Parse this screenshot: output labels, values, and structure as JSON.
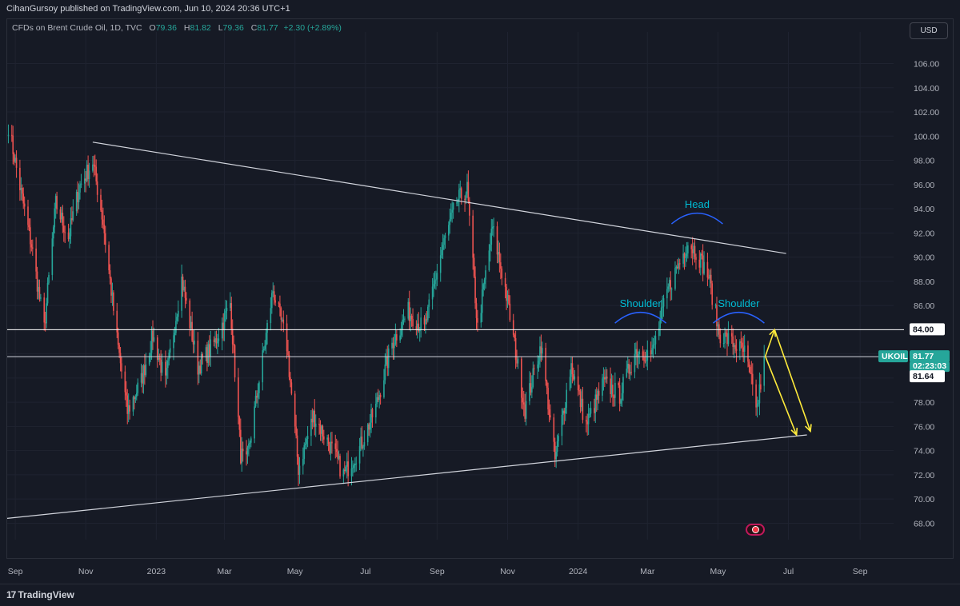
{
  "header": {
    "published": "CihanGursoy published on TradingView.com, Jun 10, 2024 20:36 UTC+1"
  },
  "legend": {
    "symbol": "CFDs on Brent Crude Oil, 1D, TVC",
    "o_label": "O",
    "o_value": "79.36",
    "h_label": "H",
    "h_value": "81.82",
    "l_label": "L",
    "l_value": "79.36",
    "c_label": "C",
    "c_value": "81.77",
    "change": "+2.30 (+2.89%)"
  },
  "currency": "USD",
  "footer": {
    "brand": "TradingView",
    "logo": "17"
  },
  "colors": {
    "up": "#26a69a",
    "down": "#ef5350",
    "bg": "#161a25",
    "arrow": "#ffeb3b",
    "annotation": "#2962ff",
    "annotation_text": "#00bcd4"
  },
  "icons": {
    "flag": "us-flag-icon"
  },
  "chart_data": {
    "type": "candlestick",
    "title": "CFDs on Brent Crude Oil, 1D, TVC",
    "y_ticks": [
      106,
      104,
      102,
      100,
      98,
      96,
      94,
      92,
      90,
      88,
      86,
      84,
      82,
      80,
      78,
      76,
      74,
      72,
      70,
      68
    ],
    "y_tick_labels": [
      "106.00",
      "104.00",
      "102.00",
      "100.00",
      "98.00",
      "96.00",
      "94.00",
      "92.00",
      "90.00",
      "88.00",
      "86.00",
      "84.00",
      "82.00",
      "80.00",
      "78.00",
      "76.00",
      "74.00",
      "72.00",
      "70.00",
      "68.00"
    ],
    "ylim": [
      66.5,
      107.5
    ],
    "x_labels": [
      {
        "label": "Sep",
        "date": "2022-09-01"
      },
      {
        "label": "Nov",
        "date": "2022-11-01"
      },
      {
        "label": "2023",
        "date": "2023-01-01"
      },
      {
        "label": "Mar",
        "date": "2023-03-01"
      },
      {
        "label": "May",
        "date": "2023-05-01"
      },
      {
        "label": "Jul",
        "date": "2023-07-01"
      },
      {
        "label": "Sep",
        "date": "2023-09-01"
      },
      {
        "label": "Nov",
        "date": "2023-11-01"
      },
      {
        "label": "2024",
        "date": "2024-01-01"
      },
      {
        "label": "Mar",
        "date": "2024-03-01"
      },
      {
        "label": "May",
        "date": "2024-05-01"
      },
      {
        "label": "Jul",
        "date": "2024-07-01"
      },
      {
        "label": "Sep",
        "date": "2024-09-01"
      }
    ],
    "xlim": [
      "2022-08-25",
      "2024-09-30"
    ],
    "approx_closes": [
      [
        "2022-08-26",
        100.9
      ],
      [
        "2022-09-05",
        95.8
      ],
      [
        "2022-09-15",
        91.0
      ],
      [
        "2022-09-26",
        84.1
      ],
      [
        "2022-10-06",
        94.4
      ],
      [
        "2022-10-17",
        91.6
      ],
      [
        "2022-10-26",
        95.7
      ],
      [
        "2022-11-07",
        97.9
      ],
      [
        "2022-11-16",
        92.9
      ],
      [
        "2022-11-28",
        83.2
      ],
      [
        "2022-12-07",
        77.2
      ],
      [
        "2022-12-19",
        79.8
      ],
      [
        "2022-12-29",
        83.5
      ],
      [
        "2023-01-09",
        79.6
      ],
      [
        "2023-01-23",
        88.2
      ],
      [
        "2023-02-06",
        80.9
      ],
      [
        "2023-02-21",
        83.0
      ],
      [
        "2023-03-06",
        86.2
      ],
      [
        "2023-03-15",
        73.7
      ],
      [
        "2023-03-20",
        72.9
      ],
      [
        "2023-03-31",
        79.8
      ],
      [
        "2023-04-12",
        87.3
      ],
      [
        "2023-04-24",
        82.7
      ],
      [
        "2023-05-04",
        72.5
      ],
      [
        "2023-05-17",
        76.9
      ],
      [
        "2023-06-01",
        74.3
      ],
      [
        "2023-06-12",
        72.0
      ],
      [
        "2023-06-26",
        74.2
      ],
      [
        "2023-07-10",
        77.6
      ],
      [
        "2023-07-24",
        82.9
      ],
      [
        "2023-08-07",
        85.5
      ],
      [
        "2023-08-21",
        84.0
      ],
      [
        "2023-09-05",
        90.6
      ],
      [
        "2023-09-18",
        94.6
      ],
      [
        "2023-09-27",
        95.6
      ],
      [
        "2023-10-06",
        84.1
      ],
      [
        "2023-10-19",
        92.4
      ],
      [
        "2023-10-30",
        87.4
      ],
      [
        "2023-11-16",
        77.4
      ],
      [
        "2023-11-30",
        82.8
      ],
      [
        "2023-12-12",
        73.2
      ],
      [
        "2023-12-26",
        81.1
      ],
      [
        "2024-01-08",
        76.1
      ],
      [
        "2024-01-23",
        79.6
      ],
      [
        "2024-02-06",
        78.6
      ],
      [
        "2024-02-20",
        82.3
      ],
      [
        "2024-03-05",
        82.0
      ],
      [
        "2024-03-19",
        87.4
      ],
      [
        "2024-04-05",
        91.2
      ],
      [
        "2024-04-12",
        90.5
      ],
      [
        "2024-04-23",
        88.4
      ],
      [
        "2024-05-02",
        83.7
      ],
      [
        "2024-05-15",
        82.8
      ],
      [
        "2024-05-24",
        82.1
      ],
      [
        "2024-06-04",
        77.5
      ],
      [
        "2024-06-07",
        79.6
      ],
      [
        "2024-06-10",
        81.77
      ]
    ],
    "trendlines": [
      {
        "from": [
          "2022-11-07",
          99.5
        ],
        "to": [
          "2024-06-29",
          90.3
        ]
      },
      {
        "from": [
          "2022-08-25",
          68.4
        ],
        "to": [
          "2024-07-17",
          75.3
        ]
      }
    ],
    "horizontal_lines": [
      84.0,
      81.77
    ],
    "price_labels": [
      {
        "text": "84.00",
        "value": 84.0
      },
      {
        "text": "UKOIL",
        "value": 81.77
      },
      {
        "text": "81.77",
        "value": 81.77
      },
      {
        "text": "02:23:03",
        "value": 81.77
      },
      {
        "text": "81.64",
        "value": 81.64
      }
    ],
    "annotations": [
      {
        "text": "Shoulder",
        "date": "2024-02-24",
        "value": 85.4
      },
      {
        "text": "Head",
        "date": "2024-04-13",
        "value": 93.6
      },
      {
        "text": "Shoulder",
        "date": "2024-05-19",
        "value": 85.4
      }
    ],
    "projection_arrows": [
      [
        [
          "2024-06-11",
          81.8
        ],
        [
          "2024-06-19",
          84.0
        ]
      ],
      [
        [
          "2024-06-19",
          84.0
        ],
        [
          "2024-07-20",
          75.6
        ]
      ],
      [
        [
          "2024-06-11",
          81.8
        ],
        [
          "2024-07-08",
          75.3
        ]
      ]
    ],
    "ticker": "UKOIL",
    "last_price": 81.77
  }
}
